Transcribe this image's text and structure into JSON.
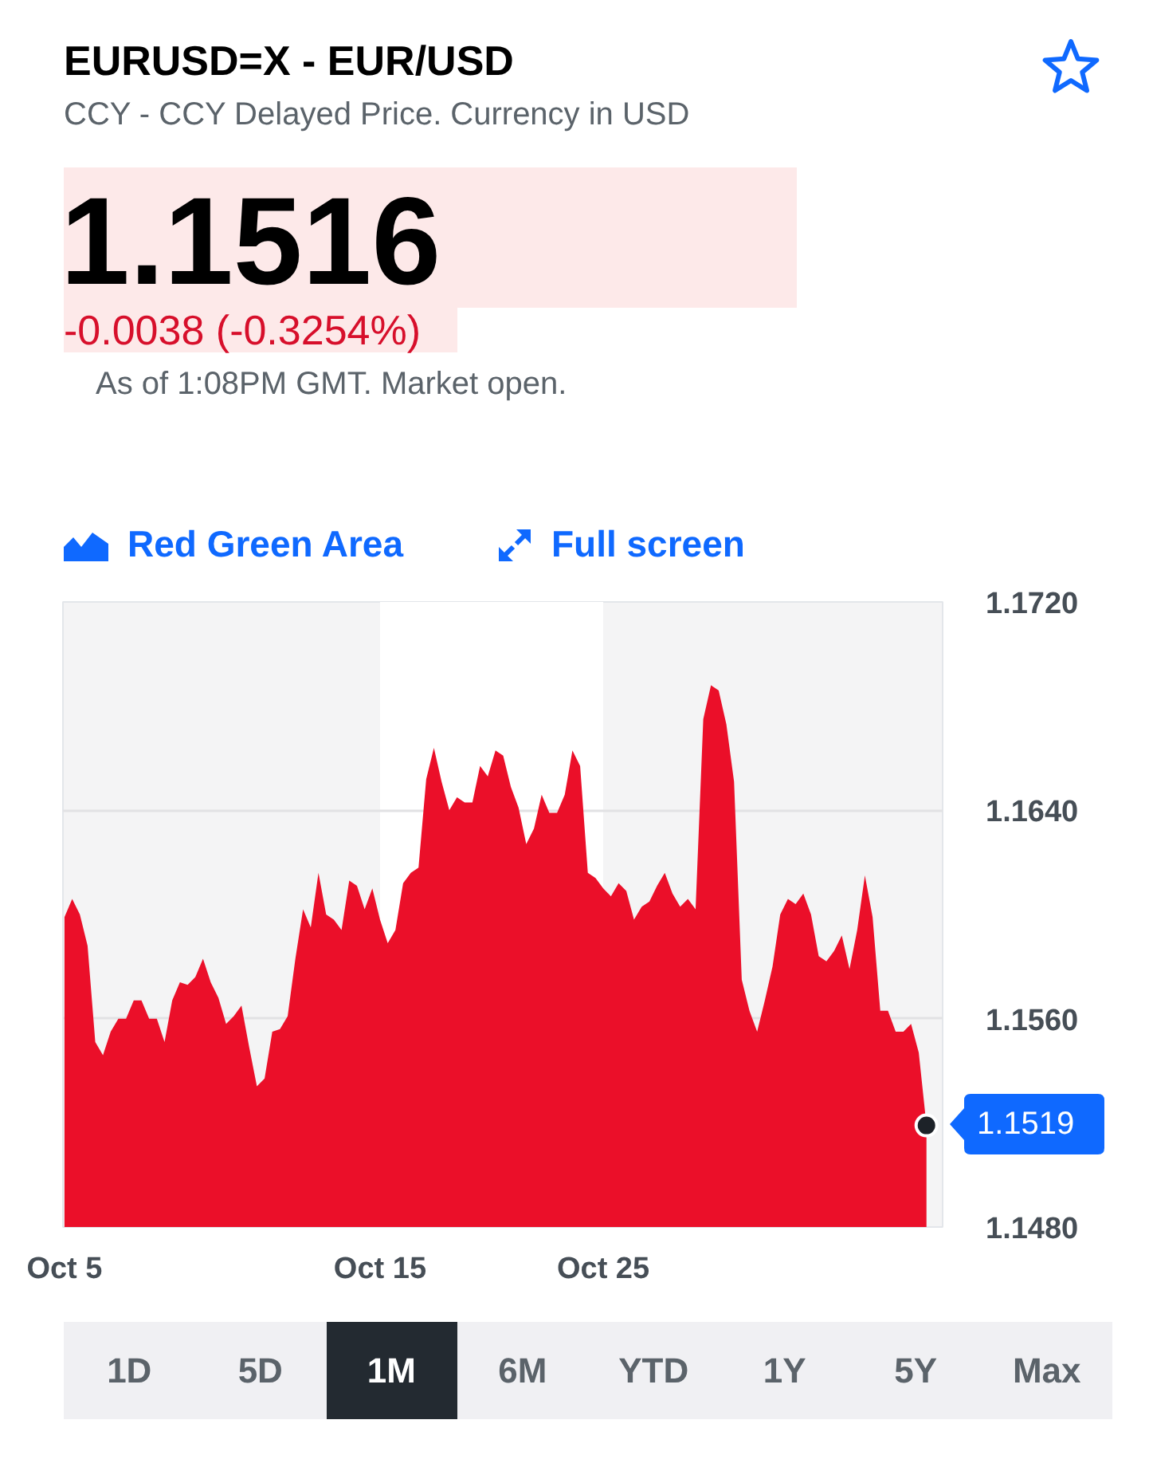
{
  "chart_data": {
    "type": "area",
    "title": "EURUSD=X - EUR/USD",
    "subtitle": "CCY - CCY Delayed Price. Currency in USD",
    "categories": [
      "Oct 5",
      null,
      null,
      null,
      null,
      null,
      null,
      null,
      null,
      null,
      null,
      null,
      null,
      null,
      null,
      null,
      null,
      null,
      null,
      null,
      null,
      null,
      null,
      null,
      null,
      null,
      null,
      null,
      null,
      null,
      null,
      null,
      null,
      null,
      null,
      null,
      null,
      null,
      null,
      null,
      null,
      "Oct 15",
      null,
      null,
      null,
      null,
      null,
      null,
      null,
      null,
      null,
      null,
      null,
      null,
      null,
      null,
      null,
      null,
      null,
      null,
      null,
      null,
      null,
      null,
      null,
      null,
      null,
      null,
      null,
      null,
      "Oct 25",
      null,
      null,
      null,
      null,
      null,
      null,
      null,
      null,
      null,
      null,
      null,
      null,
      null,
      null,
      null,
      null,
      null,
      null,
      null,
      null,
      null,
      null,
      null,
      null,
      null,
      null,
      null,
      null,
      null,
      null,
      null,
      null,
      null,
      null,
      null,
      null,
      null,
      null,
      null,
      null,
      null,
      null
    ],
    "color": "#eb0f29",
    "values": [
      1.1599,
      1.1606,
      1.16,
      1.1588,
      1.1551,
      1.1546,
      1.1555,
      1.156,
      1.156,
      1.1567,
      1.1567,
      1.156,
      1.156,
      1.1551,
      1.1567,
      1.1574,
      1.1573,
      1.1576,
      1.1583,
      1.1574,
      1.1568,
      1.1558,
      1.1561,
      1.1565,
      1.1549,
      1.1534,
      1.1537,
      1.1555,
      1.1556,
      1.1561,
      1.1583,
      1.1602,
      1.1595,
      1.1616,
      1.16,
      1.1598,
      1.1594,
      1.1613,
      1.1611,
      1.1602,
      1.161,
      1.1598,
      1.1589,
      1.1594,
      1.1612,
      1.1616,
      1.1618,
      1.1652,
      1.1664,
      1.1651,
      1.164,
      1.1645,
      1.1643,
      1.1643,
      1.1657,
      1.1653,
      1.1663,
      1.1661,
      1.1649,
      1.1641,
      1.1627,
      1.1633,
      1.1646,
      1.1639,
      1.1639,
      1.1646,
      1.1663,
      1.1657,
      1.1616,
      1.1614,
      1.161,
      1.1607,
      1.1612,
      1.1609,
      1.1598,
      1.1603,
      1.1605,
      1.1611,
      1.1616,
      1.1608,
      1.1603,
      1.1606,
      1.1602,
      1.1675,
      1.1688,
      1.1686,
      1.1673,
      1.1651,
      1.1575,
      1.1563,
      1.1555,
      1.1567,
      1.158,
      1.16,
      1.1606,
      1.1604,
      1.1608,
      1.16,
      1.1584,
      1.1582,
      1.1586,
      1.1592,
      1.1579,
      1.1594,
      1.1615,
      1.1599,
      1.1563,
      1.1563,
      1.1555,
      1.1555,
      1.1558,
      1.1547,
      1.1519
    ],
    "ylim": [
      1.148,
      1.172
    ],
    "yticks": [
      {
        "value": 1.172,
        "label": "1.1720"
      },
      {
        "value": 1.164,
        "label": "1.1640"
      },
      {
        "value": 1.156,
        "label": "1.1560"
      },
      {
        "value": 1.148,
        "label": "1.1480"
      }
    ],
    "grid": "y",
    "bands": [
      {
        "axis": "x",
        "from": "Oct 15",
        "to": "Oct 25",
        "color": "#ffffff"
      }
    ],
    "annotations": [
      "1.1516",
      "-0.0038 (-0.3254%)",
      "As of 1:08PM GMT. Market open.",
      "Red Green Area",
      "Full screen",
      "1D",
      "5D",
      "1M",
      "6M",
      "YTD",
      "1Y",
      "5Y",
      "Max",
      "1.1519"
    ]
  }
}
